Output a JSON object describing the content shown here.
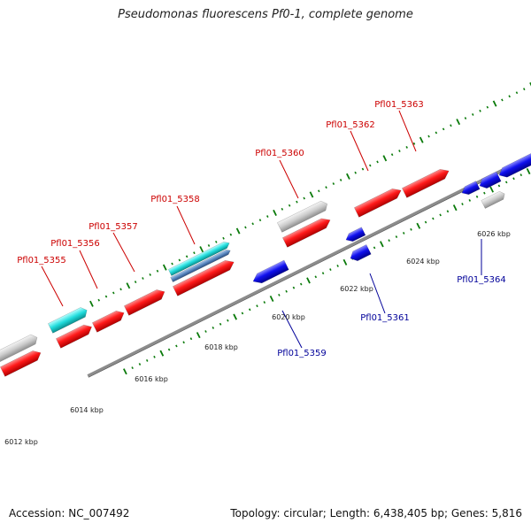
{
  "title": "Pseudomonas fluorescens Pf0-1, complete genome",
  "footer": {
    "accession": "Accession: NC_007492",
    "summary": "Topology: circular; Length: 6,438,405 bp; Genes: 5,816"
  },
  "colors": {
    "cds_forward": "#ff1a1a",
    "cds_reverse": "#1010ee",
    "rna": "#c8c8c8",
    "highlight": "#22dddd",
    "label_forward": "#cc0000",
    "label_reverse": "#000099",
    "tick": "#0a7a0a",
    "backbone": "#8c8c8c"
  },
  "ticks": {
    "labels": [
      "6012 kbp",
      "6014 kbp",
      "6016 kbp",
      "6018 kbp",
      "6020 kbp",
      "6022 kbp",
      "6024 kbp",
      "6026 kbp"
    ]
  },
  "genes": [
    {
      "label": "Pfl01_5355",
      "strand": "forward"
    },
    {
      "label": "Pfl01_5356",
      "strand": "forward"
    },
    {
      "label": "Pfl01_5357",
      "strand": "forward"
    },
    {
      "label": "Pfl01_5358",
      "strand": "forward"
    },
    {
      "label": "Pfl01_5359",
      "strand": "reverse"
    },
    {
      "label": "Pfl01_5360",
      "strand": "forward"
    },
    {
      "label": "Pfl01_5361",
      "strand": "reverse"
    },
    {
      "label": "Pfl01_5362",
      "strand": "forward"
    },
    {
      "label": "Pfl01_5363",
      "strand": "forward"
    },
    {
      "label": "Pfl01_5364",
      "strand": "reverse"
    }
  ]
}
